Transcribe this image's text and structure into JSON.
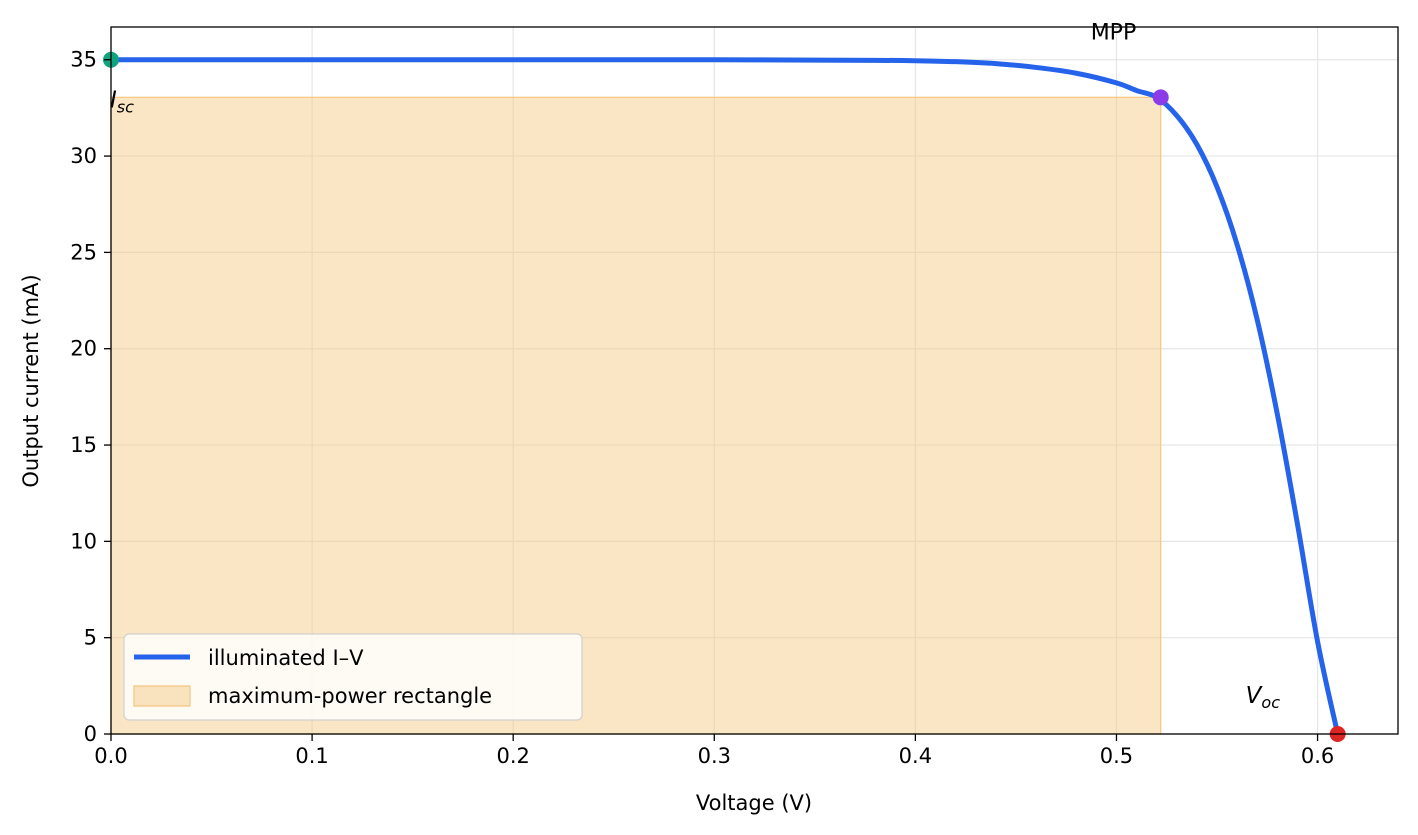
{
  "chart_data": {
    "type": "line",
    "xlabel": "Voltage (V)",
    "ylabel": "Output current (mA)",
    "xlim": [
      0,
      0.64
    ],
    "ylim": [
      0,
      36.7
    ],
    "x_ticks": [
      0.0,
      0.1,
      0.2,
      0.3,
      0.4,
      0.5,
      0.6
    ],
    "x_tick_labels": [
      "0.0",
      "0.1",
      "0.2",
      "0.3",
      "0.4",
      "0.5",
      "0.6"
    ],
    "y_ticks": [
      0,
      5,
      10,
      15,
      20,
      25,
      30,
      35
    ],
    "y_tick_labels": [
      "0",
      "5",
      "10",
      "15",
      "20",
      "25",
      "30",
      "35"
    ],
    "grid": true,
    "legend_position": "lower-left",
    "series": [
      {
        "name": "illuminated I–V",
        "color": "#2563eb",
        "x": [
          0.0,
          0.05,
          0.1,
          0.15,
          0.2,
          0.25,
          0.3,
          0.35,
          0.38,
          0.4,
          0.42,
          0.44,
          0.46,
          0.48,
          0.5,
          0.51,
          0.52,
          0.53,
          0.54,
          0.55,
          0.56,
          0.57,
          0.58,
          0.59,
          0.6,
          0.61
        ],
        "y": [
          35.0,
          35.0,
          35.0,
          35.0,
          35.0,
          35.0,
          35.0,
          34.98,
          34.97,
          34.95,
          34.9,
          34.8,
          34.6,
          34.3,
          33.8,
          33.4,
          33.05,
          32.1,
          30.6,
          28.4,
          25.4,
          21.5,
          16.6,
          10.9,
          4.8,
          0.0
        ]
      }
    ],
    "shaded_rectangle": {
      "name": "maximum-power rectangle",
      "color": "#f5c77e",
      "x_range": [
        0,
        0.522
      ],
      "y_range": [
        0,
        33.05
      ]
    },
    "points": [
      {
        "label": "Isc",
        "label_main": "I",
        "label_sub": "sc",
        "x": 0.0,
        "y": 35.0,
        "color": "#10a37f"
      },
      {
        "label": "MPP",
        "x": 0.522,
        "y": 33.05,
        "color": "#8b3be8"
      },
      {
        "label": "Voc",
        "label_main": "V",
        "label_sub": "oc",
        "x": 0.61,
        "y": 0.0,
        "color": "#dc2626"
      }
    ]
  }
}
